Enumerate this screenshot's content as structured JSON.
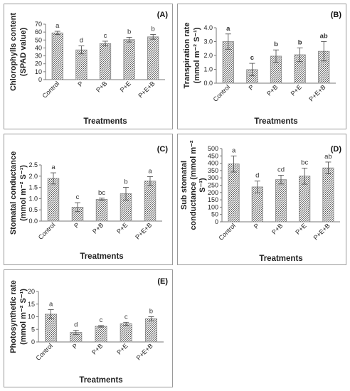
{
  "chart_data": [
    {
      "panel_label": "(A)",
      "type": "bar",
      "ylabel_lines": [
        "Chlorophylls content",
        "(SPAD value)"
      ],
      "xlabel": "Treatments",
      "categories": [
        "Control",
        "P",
        "P+B",
        "P+E",
        "P+E+B"
      ],
      "values": [
        59,
        37.5,
        45.5,
        50.5,
        54
      ],
      "errors": [
        2,
        5,
        3,
        3,
        3
      ],
      "letters": [
        "a",
        "d",
        "c",
        "b",
        "b"
      ],
      "letters_bold": false,
      "ylim": [
        0,
        70
      ],
      "yticks": [
        0,
        10,
        20,
        30,
        40,
        50,
        60,
        70
      ],
      "ytick_labels": [
        "0",
        "10",
        "20",
        "30",
        "40",
        "50",
        "60",
        "70"
      ]
    },
    {
      "panel_label": "(B)",
      "type": "bar",
      "ylabel_lines": [
        "Transpiration rate",
        "(mmol m⁻² S⁻¹)"
      ],
      "xlabel": "Treatments",
      "categories": [
        "Control",
        "P",
        "P+B",
        "P+E",
        "P+E+B"
      ],
      "values": [
        3.0,
        0.98,
        1.95,
        2.05,
        2.3
      ],
      "errors": [
        0.55,
        0.45,
        0.45,
        0.5,
        0.7
      ],
      "letters": [
        "a",
        "c",
        "b",
        "b",
        "ab"
      ],
      "letters_bold": true,
      "ylim": [
        0,
        4
      ],
      "yticks": [
        0,
        1,
        2,
        3,
        4
      ],
      "ytick_labels": [
        "0.0",
        "1.0",
        "2.0",
        "3.0",
        "4.0"
      ]
    },
    {
      "panel_label": "(C)",
      "type": "bar",
      "ylabel_lines": [
        "Stomatal conductance",
        "(mmol m⁻² S⁻¹)"
      ],
      "xlabel": "Treatments",
      "categories": [
        "Control",
        "P",
        "P+B",
        "P+E",
        "P+E+B"
      ],
      "values": [
        1.9,
        0.62,
        0.97,
        1.22,
        1.78
      ],
      "errors": [
        0.25,
        0.2,
        0.05,
        0.28,
        0.2
      ],
      "letters": [
        "a",
        "c",
        "bc",
        "b",
        "a"
      ],
      "letters_bold": false,
      "ylim": [
        0,
        2.5
      ],
      "yticks": [
        0,
        0.5,
        1,
        1.5,
        2,
        2.5
      ],
      "ytick_labels": [
        "0.0",
        "0.5",
        "1.0",
        "1.5",
        "2.0",
        "2.5"
      ]
    },
    {
      "panel_label": "(D)",
      "type": "bar",
      "ylabel_lines": [
        "Sub stomatal",
        "conductance (mmol m⁻²",
        "S⁻¹)"
      ],
      "xlabel": "Treatments",
      "categories": [
        "Control",
        "P",
        "P+B",
        "P+E",
        "P+E+B"
      ],
      "values": [
        395,
        238,
        288,
        312,
        368
      ],
      "errors": [
        55,
        40,
        30,
        55,
        40
      ],
      "letters": [
        "a",
        "d",
        "cd",
        "bc",
        "ab"
      ],
      "letters_bold": false,
      "ylim": [
        0,
        500
      ],
      "yticks": [
        0,
        50,
        100,
        150,
        200,
        250,
        300,
        350,
        400,
        450,
        500
      ],
      "ytick_labels": [
        "0",
        "50",
        "100",
        "150",
        "200",
        "250",
        "300",
        "350",
        "400",
        "450",
        "500"
      ]
    },
    {
      "panel_label": "(E)",
      "type": "bar",
      "ylabel_lines": [
        "Photosynthetic rate",
        "(mmol m⁻² S⁻¹)"
      ],
      "xlabel": "Treatments",
      "categories": [
        "Control",
        "P",
        "P+B",
        "P+E",
        "P+E+B"
      ],
      "values": [
        11,
        3.8,
        6.2,
        7.2,
        9.2
      ],
      "errors": [
        1.8,
        0.8,
        0.3,
        0.6,
        0.8
      ],
      "letters": [
        "a",
        "d",
        "c",
        "c",
        "b"
      ],
      "letters_bold": false,
      "ylim": [
        0,
        20
      ],
      "yticks": [
        0,
        5,
        10,
        15,
        20
      ],
      "ytick_labels": [
        "0",
        "5",
        "10",
        "15",
        "20"
      ]
    }
  ]
}
